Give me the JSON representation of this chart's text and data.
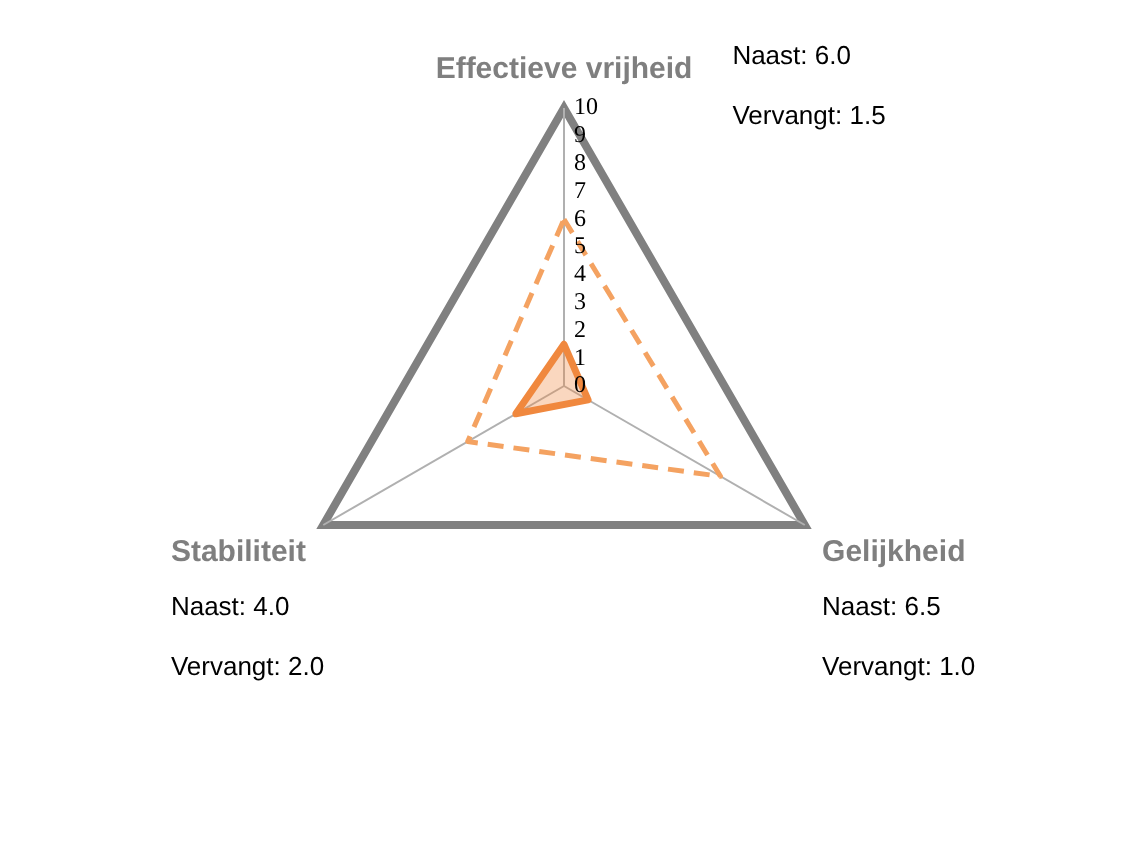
{
  "chart_data": {
    "type": "radar",
    "categories": [
      "Effectieve vrijheid",
      "Gelijkheid",
      "Stabiliteit"
    ],
    "series": [
      {
        "color": "#f4a261",
        "line_style": "dashed",
        "values": [
          6.0,
          6.5,
          4.0
        ]
      },
      {
        "color": "#f0883e",
        "line_style": "solid",
        "values": [
          1.5,
          1.0,
          2.0
        ]
      }
    ],
    "ylim": [
      0,
      10
    ],
    "yticks": [
      0,
      1,
      2,
      3,
      4,
      5,
      6,
      7,
      8,
      9,
      10
    ],
    "grid": false,
    "legend": false,
    "marker": "none",
    "annotations": [
      "Naast: 6.0",
      "Vervangt: 1.5",
      "Naast: 6.5",
      "Vervangt: 1.0",
      "Naast: 4.0",
      "Vervangt: 2.0"
    ]
  }
}
